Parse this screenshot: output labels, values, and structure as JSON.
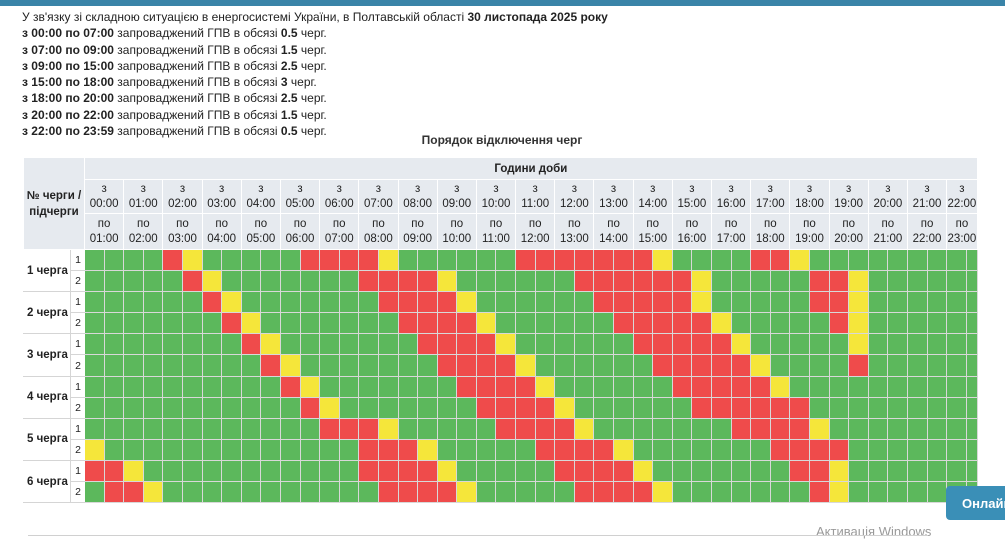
{
  "notice": {
    "intro_text": "У зв'язку зі складною ситуацією в енергосистемі України, в Полтавській області",
    "intro_date": "30 листопада 2025 року",
    "lines": [
      {
        "from": "з 00:00 по 07:00",
        "text": "запроваджений ГПВ в обсязі",
        "amount": "0.5",
        "unit": "черг."
      },
      {
        "from": "з 07:00 по 09:00",
        "text": "запроваджений ГПВ в обсязі",
        "amount": "1.5",
        "unit": "черг."
      },
      {
        "from": "з 09:00 по 15:00",
        "text": "запроваджений ГПВ в обсязі",
        "amount": "2.5",
        "unit": "черг."
      },
      {
        "from": "з 15:00 по 18:00",
        "text": "запроваджений ГПВ в обсязі",
        "amount": "3",
        "unit": "черг."
      },
      {
        "from": "з 18:00 по 20:00",
        "text": "запроваджений ГПВ в обсязі",
        "amount": "2.5",
        "unit": "черг."
      },
      {
        "from": "з 20:00 по 22:00",
        "text": "запроваджений ГПВ в обсязі",
        "amount": "1.5",
        "unit": "черг."
      },
      {
        "from": "з 22:00 по 23:59",
        "text": "запроваджений ГПВ в обсязі",
        "amount": "0.5",
        "unit": "черг."
      }
    ]
  },
  "table": {
    "caption": "Порядок відключення черг",
    "queue_header": "№ черги / підчерги",
    "hours_header": "Години доби",
    "from_prefix": "з",
    "to_prefix": "по",
    "from_times": [
      "00:00",
      "01:00",
      "02:00",
      "03:00",
      "04:00",
      "05:00",
      "06:00",
      "07:00",
      "08:00",
      "09:00",
      "10:00",
      "11:00",
      "12:00",
      "13:00",
      "14:00",
      "15:00",
      "16:00",
      "17:00",
      "18:00",
      "19:00",
      "20:00",
      "21:00",
      "22:00"
    ],
    "to_times": [
      "01:00",
      "02:00",
      "03:00",
      "04:00",
      "05:00",
      "06:00",
      "07:00",
      "08:00",
      "09:00",
      "10:00",
      "11:00",
      "12:00",
      "13:00",
      "14:00",
      "15:00",
      "16:00",
      "17:00",
      "18:00",
      "19:00",
      "20:00",
      "21:00",
      "22:00",
      "23:00"
    ],
    "colors": {
      "on": "#5cb85c",
      "off": "#ef4b4b",
      "possible": "#f5e63a"
    },
    "queues": [
      {
        "label": "1 черга",
        "subrows": [
          {
            "sub": "1",
            "slots": "ggggrygggggrrrryggggggrrrrrrryggggrrygg"
          },
          {
            "sub": "2",
            "slots": "gggggrygggggggrrrryggggggrrrrrrygggggrry"
          }
        ]
      },
      {
        "label": "2 черга",
        "subrows": [
          {
            "sub": "1",
            "slots": "ggggggrygggggggrrrryggggggrrrrrygggggrry"
          },
          {
            "sub": "2",
            "slots": "gggggggrygggggggrrrryggggggrrrrrygggggry"
          }
        ]
      },
      {
        "label": "3 черга",
        "subrows": [
          {
            "sub": "1",
            "slots": "ggggggggrygggggggrrrryggggggrrrrrygggggy"
          },
          {
            "sub": "2",
            "slots": "gggggggggrygggggggrrrryggggggrrrrryggggr"
          }
        ]
      },
      {
        "label": "4 черга",
        "subrows": [
          {
            "sub": "1",
            "slots": "ggggggggggrygggggggrrrryggggggrrrrrygggg"
          },
          {
            "sub": "2",
            "slots": "gggggggggggrygggggggrrrryggggggrrrrrrggg"
          }
        ]
      },
      {
        "label": "5 черга",
        "subrows": [
          {
            "sub": "1",
            "slots": "ggggggggggggrrrygggggrrrrygggggggrrrrygg"
          },
          {
            "sub": "2",
            "slots": "ygggggggggggggrrrygggggrrrrygggggggrrrrgg"
          }
        ]
      },
      {
        "label": "6 черга",
        "subrows": [
          {
            "sub": "1",
            "slots": "rrygggggggggggrrrrygggggrrrrygggggggrrygg"
          },
          {
            "sub": "2",
            "slots": "grrygggggggggggrrrrygggggrrrrygggggggryg"
          }
        ]
      }
    ]
  },
  "online_button": "Онлайн",
  "windows_watermark": "Активація Windows"
}
